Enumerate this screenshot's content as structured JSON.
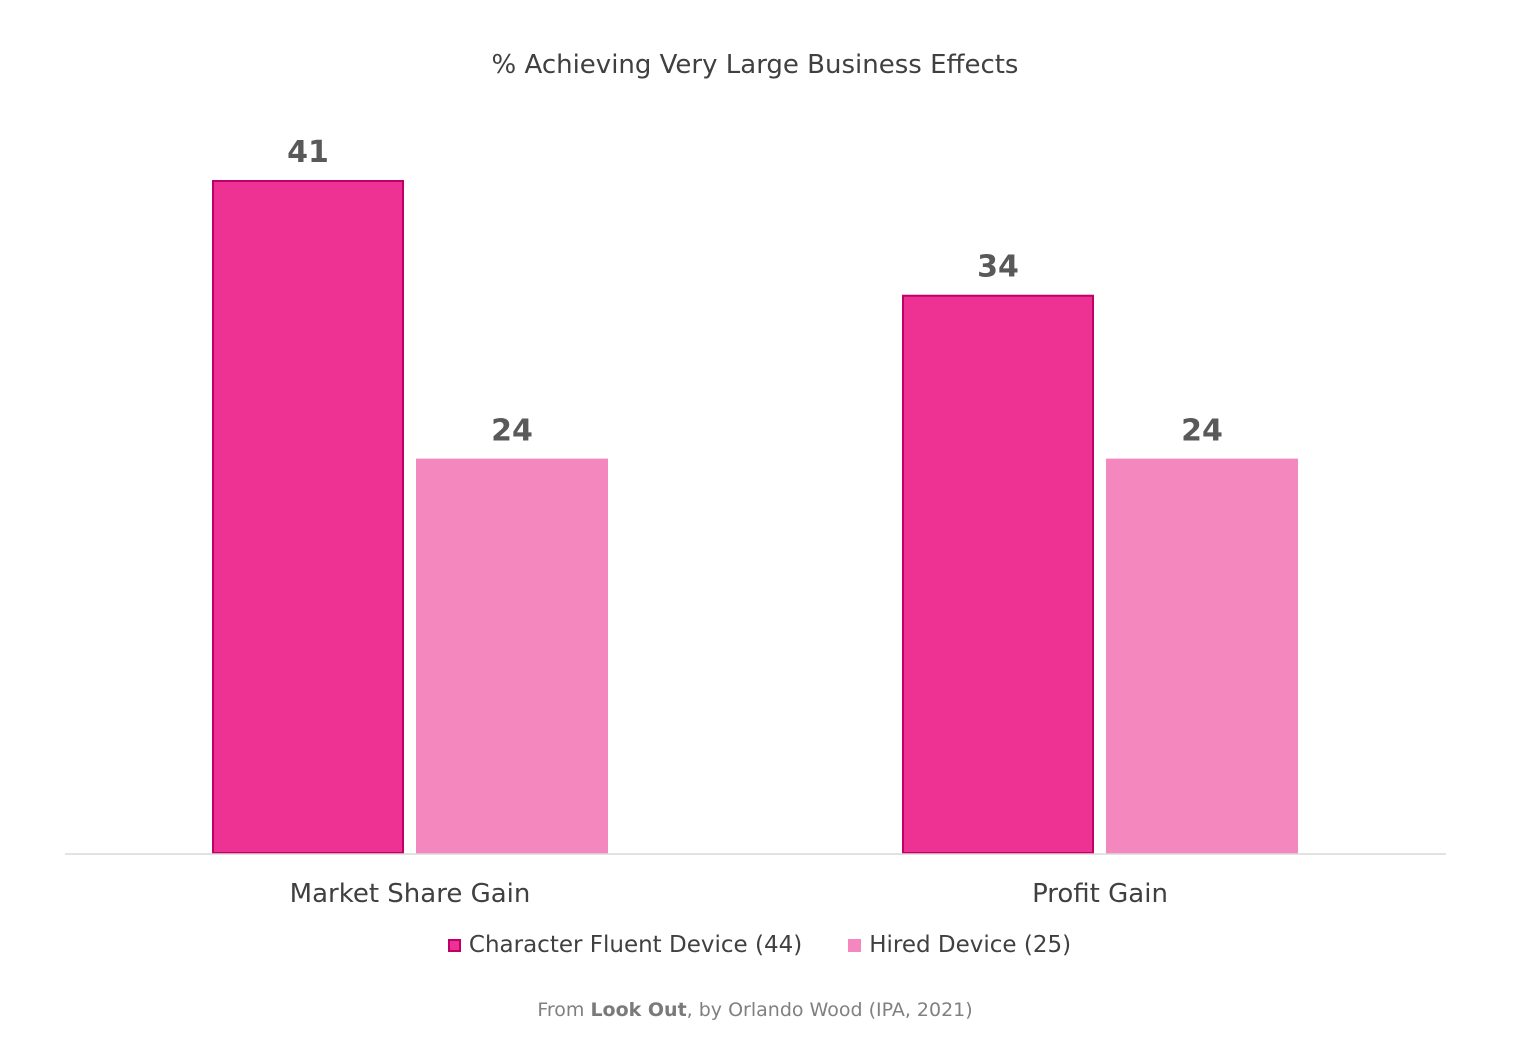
{
  "chart_data": {
    "type": "bar",
    "title": "% Achieving Very Large Business Effects",
    "categories": [
      "Market Share Gain",
      "Profit Gain"
    ],
    "series": [
      {
        "name": "Character Fluent Device (44)",
        "values": [
          41,
          34
        ],
        "color": "#EE3294",
        "border": "#C0006A"
      },
      {
        "name": "Hired Device (25)",
        "values": [
          24,
          24
        ],
        "color": "#F387BE",
        "border": "#F387BE"
      }
    ],
    "ylim": [
      0,
      41
    ],
    "grid": false,
    "legend": "bottom",
    "data_labels": true
  },
  "source": {
    "prefix": "From",
    "book": "Look Out",
    "suffix": ", by Orlando Wood (IPA, 2021)"
  }
}
